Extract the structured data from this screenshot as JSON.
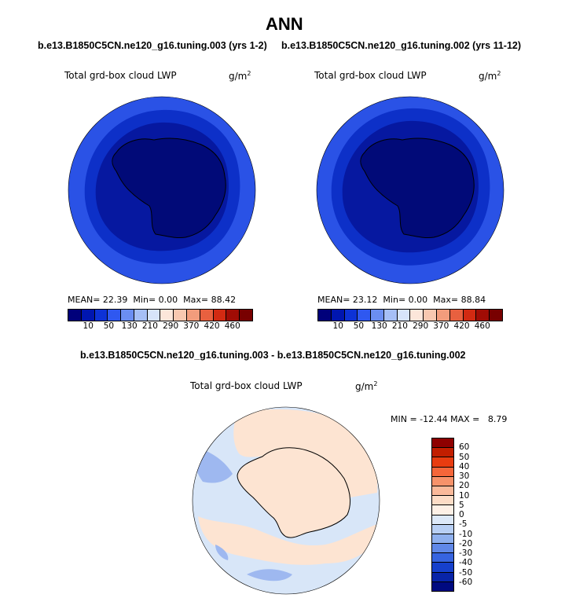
{
  "page_title": "ANN",
  "panel_left": {
    "case": "b.e13.B1850C5CN.ne120_g16.tuning.003 (yrs 1-2)",
    "var_title": "Total grd-box cloud LWP",
    "units": "g/m",
    "units_exp": "2",
    "mean_label": "MEAN=",
    "mean": "22.39",
    "min_label": "Min=",
    "min": "0.00",
    "max_label": "Max=",
    "max": "88.42"
  },
  "panel_right": {
    "case": "b.e13.B1850C5CN.ne120_g16.tuning.002 (yrs 11-12)",
    "var_title": "Total grd-box cloud LWP",
    "units": "g/m",
    "units_exp": "2",
    "mean_label": "MEAN=",
    "mean": "23.12",
    "min_label": "Min=",
    "min": "0.00",
    "max_label": "Max=",
    "max": "88.84"
  },
  "panel_diff": {
    "case": "b.e13.B1850C5CN.ne120_g16.tuning.003 - b.e13.B1850C5CN.ne120_g16.tuning.002",
    "var_title": "Total grd-box cloud LWP",
    "units": "g/m",
    "units_exp": "2",
    "minmax": "MIN = -12.44 MAX =   8.79"
  },
  "colorbar_abs": {
    "colors": [
      "#00007a",
      "#0016b0",
      "#0d32d6",
      "#2f58f0",
      "#6b8ef2",
      "#a6bff6",
      "#d7e4fa",
      "#fce6da",
      "#f8c8b0",
      "#f29c7c",
      "#e8603f",
      "#d22a12",
      "#a00c05",
      "#780000"
    ],
    "labels": [
      "10",
      "50",
      "130",
      "210",
      "290",
      "370",
      "420",
      "460"
    ]
  },
  "colorbar_diff": {
    "colors": [
      "#8e0000",
      "#c21e00",
      "#e83c10",
      "#f5663a",
      "#f7926a",
      "#fab99a",
      "#fcdcc6",
      "#fdf0e6",
      "#dce8f8",
      "#b8cff4",
      "#8fb0ee",
      "#6088e8",
      "#3764e0",
      "#1640cc",
      "#0824a8",
      "#000a80"
    ],
    "labels": [
      "60",
      "50",
      "40",
      "30",
      "20",
      "10",
      "5",
      "0",
      "-5",
      "-10",
      "-20",
      "-30",
      "-40",
      "-50",
      "-60"
    ]
  },
  "map_colors": {
    "outer": "#2a52e6",
    "middle": "#0d30c8",
    "inner": "#0618a0",
    "core": "#010a78",
    "diff_bg": "#d8e6f8",
    "diff_pos": "#fde4d2",
    "diff_neg": "#9eb8f0"
  }
}
